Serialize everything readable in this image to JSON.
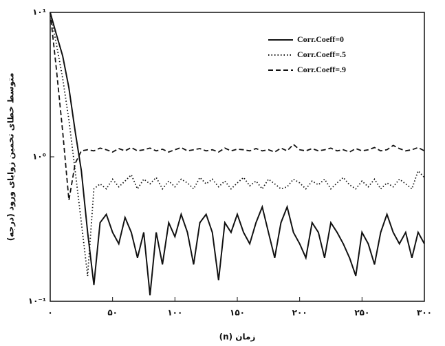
{
  "chart_data": {
    "type": "line",
    "xlabel": "زمان (n)",
    "ylabel": "متوسط خطای تخمین زوایای ورود (درجه)",
    "log_y": true,
    "legend": "upper right",
    "x": [
      0,
      5,
      10,
      15,
      20,
      25,
      30,
      35,
      40,
      45,
      50,
      55,
      60,
      65,
      70,
      75,
      80,
      85,
      90,
      95,
      100,
      105,
      110,
      115,
      120,
      125,
      130,
      135,
      140,
      145,
      150,
      155,
      160,
      165,
      170,
      175,
      180,
      185,
      190,
      195,
      200,
      205,
      210,
      215,
      220,
      225,
      230,
      235,
      240,
      245,
      250,
      255,
      260,
      265,
      270,
      275,
      280,
      285,
      290,
      295,
      300
    ],
    "series": [
      {
        "name": "Corr.Coeff=0",
        "color": "#111111",
        "style": "solid",
        "values": [
          10,
          7,
          5,
          3,
          1.5,
          0.8,
          0.3,
          0.13,
          0.35,
          0.4,
          0.3,
          0.25,
          0.38,
          0.3,
          0.2,
          0.3,
          0.11,
          0.3,
          0.18,
          0.35,
          0.28,
          0.4,
          0.3,
          0.18,
          0.35,
          0.4,
          0.3,
          0.14,
          0.35,
          0.3,
          0.4,
          0.3,
          0.25,
          0.35,
          0.45,
          0.3,
          0.2,
          0.35,
          0.45,
          0.3,
          0.25,
          0.2,
          0.35,
          0.3,
          0.2,
          0.35,
          0.3,
          0.25,
          0.2,
          0.15,
          0.3,
          0.25,
          0.18,
          0.3,
          0.4,
          0.3,
          0.25,
          0.3,
          0.2,
          0.3,
          0.25
        ]
      },
      {
        "name": "Corr.Coeff=.5",
        "color": "#111111",
        "style": "dotted",
        "values": [
          10,
          6,
          3.5,
          1.8,
          0.8,
          0.35,
          0.15,
          0.6,
          0.65,
          0.6,
          0.7,
          0.62,
          0.68,
          0.75,
          0.6,
          0.7,
          0.65,
          0.72,
          0.6,
          0.68,
          0.62,
          0.7,
          0.66,
          0.6,
          0.72,
          0.65,
          0.7,
          0.62,
          0.68,
          0.6,
          0.66,
          0.72,
          0.63,
          0.68,
          0.6,
          0.7,
          0.65,
          0.6,
          0.62,
          0.7,
          0.66,
          0.6,
          0.68,
          0.64,
          0.7,
          0.6,
          0.66,
          0.72,
          0.64,
          0.6,
          0.68,
          0.62,
          0.7,
          0.6,
          0.66,
          0.62,
          0.7,
          0.65,
          0.6,
          0.8,
          0.72
        ]
      },
      {
        "name": "Corr.Coeff=.9",
        "color": "#111111",
        "style": "dashed",
        "values": [
          10,
          4,
          1.5,
          0.5,
          0.9,
          1.1,
          1.12,
          1.1,
          1.15,
          1.12,
          1.08,
          1.14,
          1.1,
          1.16,
          1.1,
          1.12,
          1.15,
          1.1,
          1.13,
          1.08,
          1.12,
          1.16,
          1.1,
          1.12,
          1.14,
          1.1,
          1.12,
          1.08,
          1.15,
          1.1,
          1.13,
          1.12,
          1.1,
          1.14,
          1.1,
          1.12,
          1.08,
          1.15,
          1.1,
          1.22,
          1.12,
          1.1,
          1.14,
          1.1,
          1.12,
          1.15,
          1.1,
          1.12,
          1.08,
          1.14,
          1.1,
          1.12,
          1.16,
          1.1,
          1.12,
          1.2,
          1.14,
          1.1,
          1.12,
          1.16,
          1.1
        ]
      }
    ],
    "xlim": [
      0,
      300
    ],
    "xticks": [
      {
        "value": 0,
        "label": "۰"
      },
      {
        "value": 50,
        "label": "۵۰"
      },
      {
        "value": 100,
        "label": "۱۰۰"
      },
      {
        "value": 150,
        "label": "۱۵۰"
      },
      {
        "value": 200,
        "label": "۲۰۰"
      },
      {
        "value": 250,
        "label": "۲۵۰"
      },
      {
        "value": 300,
        "label": "۳۰۰"
      }
    ],
    "ylim": [
      0.1,
      10
    ],
    "yticks": [
      {
        "value": 0.1,
        "label": "۱۰⁻¹"
      },
      {
        "value": 1,
        "label": "۱۰⁰"
      },
      {
        "value": 10,
        "label": "۱۰¹"
      }
    ]
  }
}
